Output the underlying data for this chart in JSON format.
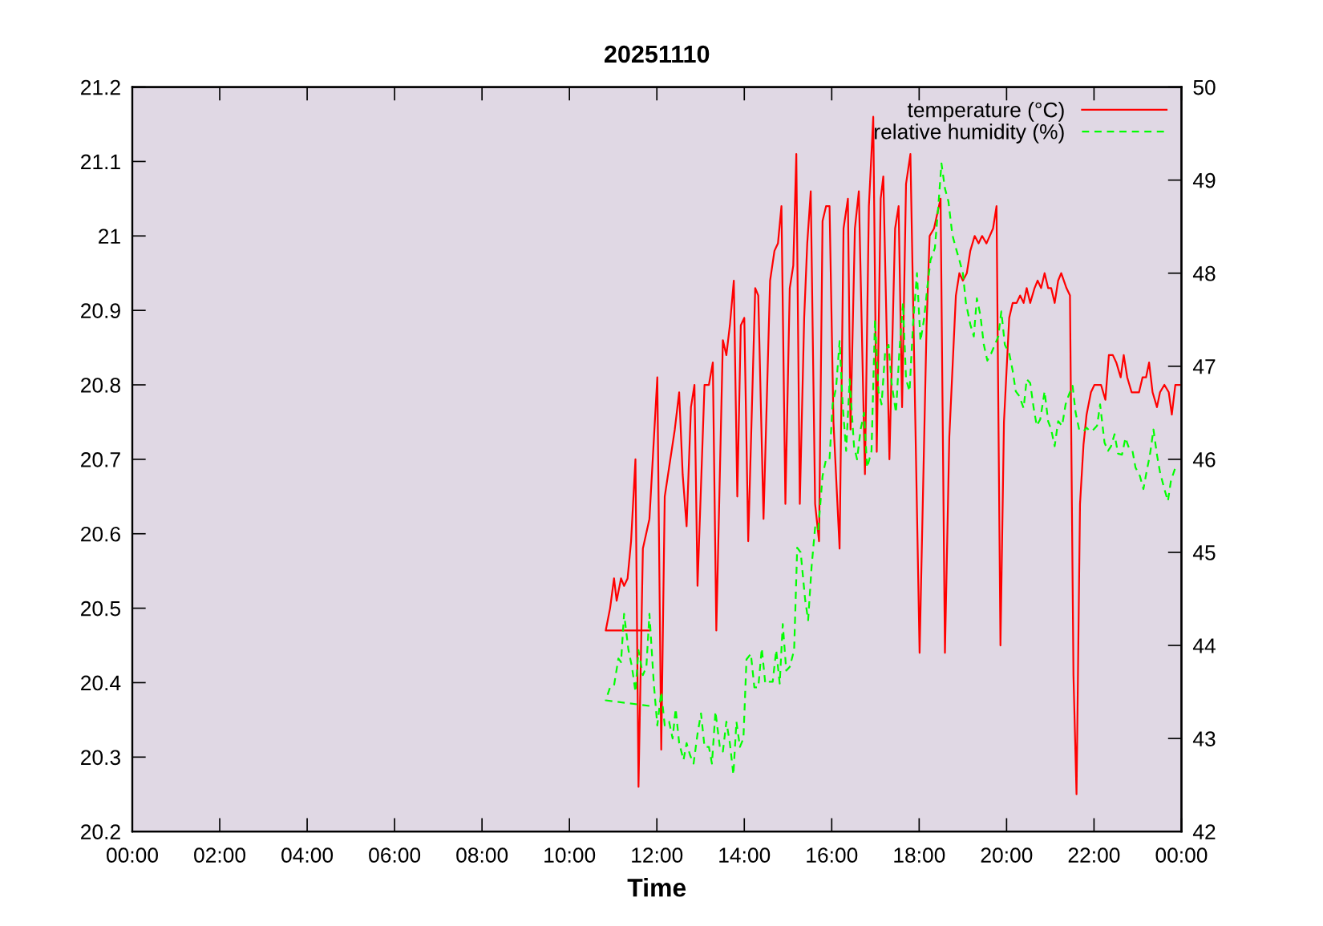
{
  "chart_data": {
    "type": "line",
    "title": "20251110",
    "xlabel": "Time",
    "xlim": [
      0,
      24
    ],
    "xticks": [
      {
        "value": 0,
        "label": "00:00"
      },
      {
        "value": 2,
        "label": "02:00"
      },
      {
        "value": 4,
        "label": "04:00"
      },
      {
        "value": 6,
        "label": "06:00"
      },
      {
        "value": 8,
        "label": "08:00"
      },
      {
        "value": 10,
        "label": "10:00"
      },
      {
        "value": 12,
        "label": "12:00"
      },
      {
        "value": 14,
        "label": "14:00"
      },
      {
        "value": 16,
        "label": "16:00"
      },
      {
        "value": 18,
        "label": "18:00"
      },
      {
        "value": 20,
        "label": "20:00"
      },
      {
        "value": 22,
        "label": "22:00"
      },
      {
        "value": 24,
        "label": "00:00"
      }
    ],
    "ylim": [
      20.2,
      21.2
    ],
    "yticks": [
      20.2,
      20.3,
      20.4,
      20.5,
      20.6,
      20.7,
      20.8,
      20.9,
      21,
      21.1,
      21.2
    ],
    "y2lim": [
      42,
      50
    ],
    "y2ticks": [
      42,
      43,
      44,
      45,
      46,
      47,
      48,
      49,
      50
    ],
    "legend": "top right",
    "grid": false,
    "series": [
      {
        "name": "temperature (°C)",
        "color": "#ff0000",
        "line_style": "solid",
        "x": [
          11.83,
          10.83,
          10.93,
          11.02,
          11.08,
          11.18,
          11.25,
          11.33,
          11.41,
          11.51,
          11.58,
          11.68,
          11.83,
          12.01,
          12.1,
          12.18,
          12.41,
          12.51,
          12.59,
          12.68,
          12.78,
          12.86,
          12.93,
          13.09,
          13.19,
          13.28,
          13.36,
          13.51,
          13.59,
          13.67,
          13.76,
          13.84,
          13.92,
          14.0,
          14.09,
          14.25,
          14.32,
          14.44,
          14.59,
          14.69,
          14.77,
          14.85,
          14.94,
          15.04,
          15.12,
          15.19,
          15.27,
          15.37,
          15.44,
          15.52,
          15.62,
          15.71,
          15.79,
          15.87,
          15.95,
          16.04,
          16.18,
          16.27,
          16.37,
          16.43,
          16.53,
          16.62,
          16.76,
          16.85,
          16.95,
          17.03,
          17.12,
          17.18,
          17.32,
          17.45,
          17.53,
          17.61,
          17.7,
          17.8,
          18.01,
          18.17,
          18.24,
          18.34,
          18.49,
          18.59,
          18.69,
          18.84,
          18.92,
          19.0,
          19.09,
          19.17,
          19.27,
          19.36,
          19.44,
          19.54,
          19.69,
          19.77,
          19.86,
          19.94,
          20.06,
          20.14,
          20.23,
          20.31,
          20.39,
          20.46,
          20.54,
          20.64,
          20.71,
          20.79,
          20.87,
          20.95,
          21.02,
          21.1,
          21.18,
          21.25,
          21.37,
          21.45,
          21.53,
          21.6,
          21.68,
          21.76,
          21.83,
          21.93,
          22.01,
          22.16,
          22.26,
          22.34,
          22.43,
          22.51,
          22.61,
          22.68,
          22.76,
          22.86,
          23.03,
          23.11,
          23.19,
          23.26,
          23.34,
          23.44,
          23.51,
          23.61,
          23.71,
          23.78,
          23.86,
          23.96
        ],
        "values": [
          20.47,
          20.47,
          20.5,
          20.54,
          20.51,
          20.54,
          20.53,
          20.54,
          20.59,
          20.7,
          20.26,
          20.58,
          20.62,
          20.81,
          20.31,
          20.65,
          20.74,
          20.79,
          20.68,
          20.61,
          20.77,
          20.8,
          20.53,
          20.8,
          20.8,
          20.83,
          20.47,
          20.86,
          20.84,
          20.88,
          20.94,
          20.65,
          20.88,
          20.89,
          20.59,
          20.93,
          20.92,
          20.62,
          20.94,
          20.98,
          20.99,
          21.04,
          20.64,
          20.93,
          20.96,
          21.11,
          20.64,
          20.89,
          20.99,
          21.06,
          20.64,
          20.59,
          21.02,
          21.04,
          21.04,
          20.75,
          20.58,
          21.01,
          21.05,
          20.74,
          21.01,
          21.06,
          20.68,
          21.04,
          21.16,
          20.71,
          21.05,
          21.08,
          20.7,
          21.01,
          21.04,
          20.77,
          21.07,
          21.11,
          20.44,
          20.88,
          21.0,
          21.01,
          21.05,
          20.44,
          20.73,
          20.92,
          20.95,
          20.94,
          20.95,
          20.98,
          21.0,
          20.99,
          21.0,
          20.99,
          21.01,
          21.04,
          20.45,
          20.75,
          20.89,
          20.91,
          20.91,
          20.92,
          20.91,
          20.93,
          20.91,
          20.93,
          20.94,
          20.93,
          20.95,
          20.93,
          20.93,
          20.91,
          20.94,
          20.95,
          20.93,
          20.92,
          20.41,
          20.25,
          20.64,
          20.72,
          20.76,
          20.79,
          20.8,
          20.8,
          20.78,
          20.84,
          20.84,
          20.83,
          20.81,
          20.84,
          20.81,
          20.79,
          20.79,
          20.81,
          20.81,
          20.83,
          20.79,
          20.77,
          20.79,
          20.8,
          20.79,
          20.76,
          20.8,
          20.8
        ]
      },
      {
        "name": "relative humidity (%)",
        "color": "#00ff00",
        "line_style": "dashed",
        "axis": "y2",
        "x": [
          11.83,
          10.83,
          10.93,
          11.02,
          11.12,
          11.18,
          11.25,
          11.35,
          11.43,
          11.51,
          11.58,
          11.68,
          11.76,
          11.83,
          11.93,
          12.01,
          12.1,
          12.18,
          12.28,
          12.36,
          12.43,
          12.51,
          12.61,
          12.68,
          12.76,
          12.84,
          12.93,
          13.01,
          13.09,
          13.19,
          13.26,
          13.34,
          13.44,
          13.51,
          13.59,
          13.67,
          13.75,
          13.82,
          13.9,
          13.98,
          14.05,
          14.15,
          14.23,
          14.32,
          14.4,
          14.48,
          14.56,
          14.65,
          14.73,
          14.81,
          14.88,
          14.96,
          15.04,
          15.14,
          15.21,
          15.29,
          15.39,
          15.46,
          15.54,
          15.62,
          15.69,
          15.79,
          15.87,
          15.95,
          16.02,
          16.1,
          16.18,
          16.25,
          16.33,
          16.41,
          16.51,
          16.58,
          16.66,
          16.74,
          16.81,
          16.91,
          16.99,
          17.07,
          17.14,
          17.22,
          17.3,
          17.37,
          17.47,
          17.55,
          17.63,
          17.7,
          17.78,
          17.86,
          17.95,
          18.03,
          18.11,
          18.19,
          18.26,
          18.36,
          18.44,
          18.51,
          18.59,
          18.67,
          18.76,
          18.84,
          18.92,
          19.0,
          19.07,
          19.17,
          19.25,
          19.32,
          19.4,
          19.48,
          19.56,
          19.65,
          19.73,
          19.81,
          19.88,
          19.96,
          20.06,
          20.14,
          20.21,
          20.29,
          20.39,
          20.46,
          20.54,
          20.62,
          20.69,
          20.77,
          20.87,
          20.95,
          21.02,
          21.1,
          21.18,
          21.27,
          21.35,
          21.43,
          21.51,
          21.58,
          21.66,
          21.76,
          21.83,
          21.91,
          21.99,
          22.07,
          22.14,
          22.24,
          22.32,
          22.39,
          22.47,
          22.55,
          22.64,
          22.72,
          22.8,
          22.88,
          22.95,
          23.05,
          23.13,
          23.2,
          23.28,
          23.36,
          23.44,
          23.51,
          23.61,
          23.69,
          23.76,
          23.86
        ],
        "values": [
          43.35,
          43.41,
          43.55,
          43.57,
          43.86,
          43.82,
          44.34,
          43.95,
          43.77,
          43.5,
          43.95,
          43.68,
          43.77,
          44.34,
          43.59,
          43.14,
          43.5,
          43.14,
          43.18,
          43.0,
          43.32,
          42.95,
          42.77,
          42.95,
          42.82,
          42.73,
          43.05,
          43.27,
          42.91,
          42.91,
          42.73,
          43.29,
          42.91,
          42.86,
          43.18,
          42.95,
          42.61,
          43.18,
          42.91,
          43.0,
          43.85,
          43.91,
          43.55,
          43.55,
          43.97,
          43.59,
          43.61,
          43.61,
          43.95,
          43.59,
          44.23,
          43.73,
          43.77,
          43.95,
          45.05,
          45.0,
          44.5,
          44.27,
          44.85,
          45.27,
          45.23,
          45.82,
          46.0,
          46.0,
          46.59,
          46.77,
          47.27,
          46.59,
          46.09,
          46.86,
          46.14,
          46.0,
          46.32,
          46.5,
          45.91,
          46.09,
          47.5,
          46.73,
          46.59,
          47.14,
          47.23,
          46.82,
          46.5,
          47.18,
          47.68,
          46.86,
          46.73,
          47.45,
          48.0,
          47.27,
          47.5,
          47.86,
          48.14,
          48.27,
          48.73,
          49.18,
          48.91,
          48.77,
          48.41,
          48.27,
          48.14,
          48.0,
          47.68,
          47.45,
          47.32,
          47.73,
          47.55,
          47.23,
          47.06,
          47.14,
          47.23,
          47.32,
          47.59,
          47.23,
          47.14,
          46.95,
          46.73,
          46.68,
          46.55,
          46.86,
          46.82,
          46.55,
          46.36,
          46.43,
          46.73,
          46.41,
          46.32,
          46.14,
          46.41,
          46.36,
          46.59,
          46.7,
          46.79,
          46.5,
          46.32,
          46.3,
          46.34,
          46.3,
          46.32,
          46.36,
          46.59,
          46.18,
          46.09,
          46.14,
          46.27,
          46.06,
          46.05,
          46.23,
          46.12,
          46.09,
          45.91,
          45.82,
          45.68,
          45.86,
          46.05,
          46.32,
          46.05,
          45.86,
          45.68,
          45.55,
          45.77,
          45.91
        ]
      }
    ]
  }
}
